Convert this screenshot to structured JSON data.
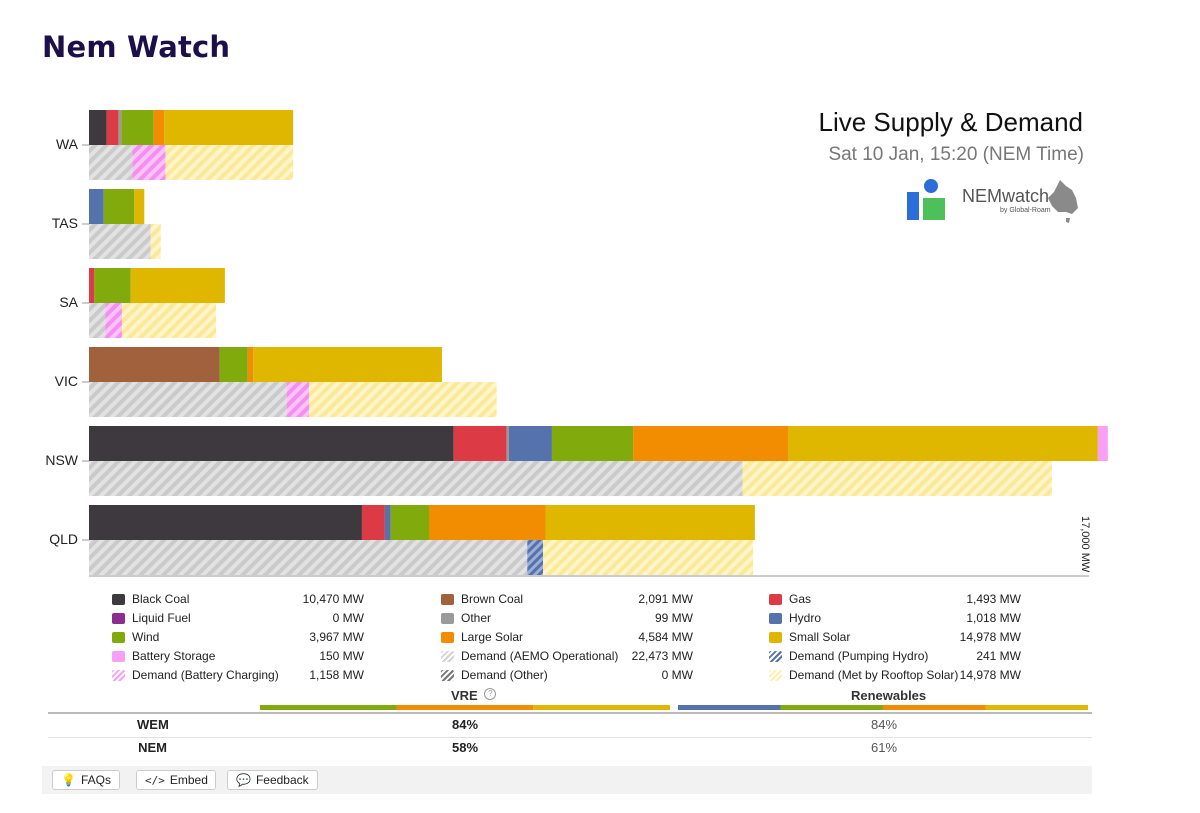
{
  "page": {
    "title": "Nem Watch"
  },
  "panel": {
    "title": "Live Supply & Demand",
    "subtitle": "Sat 10 Jan, 15:20 (NEM Time)",
    "logo_text": "NEMwatch",
    "logo_by": "by Global-Roam"
  },
  "colors": {
    "black_coal": "#3d393f",
    "brown_coal": "#a0613c",
    "gas": "#dc3b45",
    "liquid_fuel": "#8b2f8f",
    "other": "#9a9a9a",
    "hydro": "#5572ad",
    "wind": "#81ab0d",
    "large_solar": "#f28c00",
    "small_solar": "#dfb700",
    "battery": "#f8a0f5",
    "demand_aemo": "#d3d3d3",
    "demand_met_rooftop": "#fdf1ad"
  },
  "chart_data": {
    "type": "bar",
    "orientation": "horizontal",
    "stacked": true,
    "regions": [
      "WA",
      "TAS",
      "SA",
      "VIC",
      "NSW",
      "QLD"
    ],
    "axis_max_label": "17,000 MW",
    "axis_max": 17000,
    "supply_series": [
      {
        "key": "black_coal",
        "values": [
          300,
          0,
          0,
          0,
          6200,
          4640
        ]
      },
      {
        "key": "brown_coal",
        "values": [
          0,
          0,
          0,
          2220,
          0,
          0
        ]
      },
      {
        "key": "gas",
        "values": [
          200,
          0,
          90,
          0,
          900,
          390
        ]
      },
      {
        "key": "other",
        "values": [
          50,
          0,
          0,
          0,
          40,
          0
        ]
      },
      {
        "key": "hydro",
        "values": [
          0,
          250,
          0,
          0,
          730,
          100
        ]
      },
      {
        "key": "wind",
        "values": [
          550,
          520,
          620,
          480,
          1380,
          650
        ]
      },
      {
        "key": "large_solar",
        "values": [
          180,
          0,
          0,
          90,
          2640,
          1980
        ]
      },
      {
        "key": "small_solar",
        "values": [
          2190,
          170,
          1600,
          3210,
          5260,
          3560
        ]
      },
      {
        "key": "battery",
        "values": [
          0,
          0,
          0,
          0,
          170,
          0
        ]
      }
    ],
    "demand_series": [
      {
        "key": "demand_aemo",
        "values": [
          740,
          1050,
          280,
          3360,
          11110,
          7450
        ]
      },
      {
        "key": "demand_pumping_hydro",
        "values": [
          0,
          0,
          0,
          0,
          0,
          270
        ]
      },
      {
        "key": "demand_battery_charging",
        "values": [
          560,
          0,
          280,
          380,
          0,
          0
        ]
      },
      {
        "key": "demand_met_rooftop",
        "values": [
          2170,
          170,
          1600,
          3190,
          5260,
          3570
        ]
      }
    ]
  },
  "legend": [
    {
      "key": "black_coal",
      "name": "Black Coal",
      "value": "10,470 MW",
      "style": "solid",
      "color": "#3d393f"
    },
    {
      "key": "brown_coal",
      "name": "Brown Coal",
      "value": "2,091 MW",
      "style": "solid",
      "color": "#a0613c"
    },
    {
      "key": "gas",
      "name": "Gas",
      "value": "1,493 MW",
      "style": "solid",
      "color": "#dc3b45"
    },
    {
      "key": "liquid_fuel",
      "name": "Liquid Fuel",
      "value": "0 MW",
      "style": "solid",
      "color": "#8b2f8f"
    },
    {
      "key": "other",
      "name": "Other",
      "value": "99 MW",
      "style": "solid",
      "color": "#9a9a9a"
    },
    {
      "key": "hydro",
      "name": "Hydro",
      "value": "1,018 MW",
      "style": "solid",
      "color": "#5572ad"
    },
    {
      "key": "wind",
      "name": "Wind",
      "value": "3,967 MW",
      "style": "solid",
      "color": "#81ab0d"
    },
    {
      "key": "large_solar",
      "name": "Large Solar",
      "value": "4,584 MW",
      "style": "solid",
      "color": "#f28c00"
    },
    {
      "key": "small_solar",
      "name": "Small Solar",
      "value": "14,978 MW",
      "style": "solid",
      "color": "#dfb700"
    },
    {
      "key": "battery",
      "name": "Battery Storage",
      "value": "150 MW",
      "style": "solid",
      "color": "#f8a0f5"
    },
    {
      "key": "demand_aemo",
      "name": "Demand (AEMO Operational)",
      "value": "22,473 MW",
      "style": "hatch",
      "color": "#d3d3d3"
    },
    {
      "key": "demand_pumping_hydro",
      "name": "Demand (Pumping Hydro)",
      "value": "241 MW",
      "style": "hatch",
      "color": "#5572ad"
    },
    {
      "key": "demand_battery_charging",
      "name": "Demand (Battery Charging)",
      "value": "1,158 MW",
      "style": "hatch",
      "color": "#f8a0f5"
    },
    {
      "key": "demand_other",
      "name": "Demand (Other)",
      "value": "0 MW",
      "style": "hatch",
      "color": "#777777"
    },
    {
      "key": "demand_met_rooftop",
      "name": "Demand (Met by Rooftop Solar)",
      "value": "14,978 MW",
      "style": "hatch",
      "color": "#fdf1ad"
    }
  ],
  "table": {
    "headers": {
      "vre": "VRE",
      "renewables": "Renewables"
    },
    "vre_help_icon": "question-circle-icon",
    "rows": [
      {
        "market": "WEM",
        "vre": "84%",
        "renewables": "84%"
      },
      {
        "market": "NEM",
        "vre": "58%",
        "renewables": "61%"
      }
    ],
    "vre_bar": [
      {
        "key": "wind",
        "fraction": 0.333
      },
      {
        "key": "large_solar",
        "fraction": 0.333
      },
      {
        "key": "small_solar",
        "fraction": 0.334
      }
    ],
    "renewables_bar": [
      {
        "key": "hydro",
        "fraction": 0.25
      },
      {
        "key": "wind",
        "fraction": 0.25
      },
      {
        "key": "large_solar",
        "fraction": 0.25
      },
      {
        "key": "small_solar",
        "fraction": 0.25
      }
    ]
  },
  "footer": {
    "faqs": {
      "label": "FAQs",
      "icon": "lightbulb-icon"
    },
    "embed": {
      "label": "Embed",
      "icon": "code-icon"
    },
    "feedback": {
      "label": "Feedback",
      "icon": "speech-bubble-icon"
    }
  }
}
